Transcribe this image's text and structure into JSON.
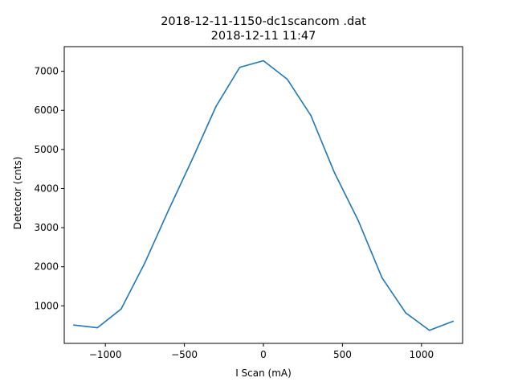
{
  "chart_data": {
    "type": "line",
    "title": "2018-12-11-1150-dc1scancom .dat",
    "subtitle": "2018-12-11 11:47",
    "xlabel": "I Scan (mA)",
    "ylabel": "Detector (cnts)",
    "xlim": [
      -1260,
      1260
    ],
    "ylim": [
      40,
      7630
    ],
    "xticks": [
      -1000,
      -500,
      0,
      500,
      1000
    ],
    "xtick_labels": [
      "−1000",
      "−500",
      "0",
      "500",
      "1000"
    ],
    "yticks": [
      1000,
      2000,
      3000,
      4000,
      5000,
      6000,
      7000
    ],
    "ytick_labels": [
      "1000",
      "2000",
      "3000",
      "4000",
      "5000",
      "6000",
      "7000"
    ],
    "grid": false,
    "series": [
      {
        "color": "#1f77b4",
        "x": [
          -1200,
          -1050,
          -900,
          -750,
          -600,
          -450,
          -300,
          -150,
          0,
          150,
          300,
          450,
          600,
          750,
          900,
          1050,
          1200
        ],
        "y": [
          510,
          440,
          920,
          2100,
          3450,
          4750,
          6100,
          7100,
          7270,
          6800,
          5870,
          4400,
          3180,
          1720,
          820,
          375,
          605
        ]
      }
    ]
  }
}
